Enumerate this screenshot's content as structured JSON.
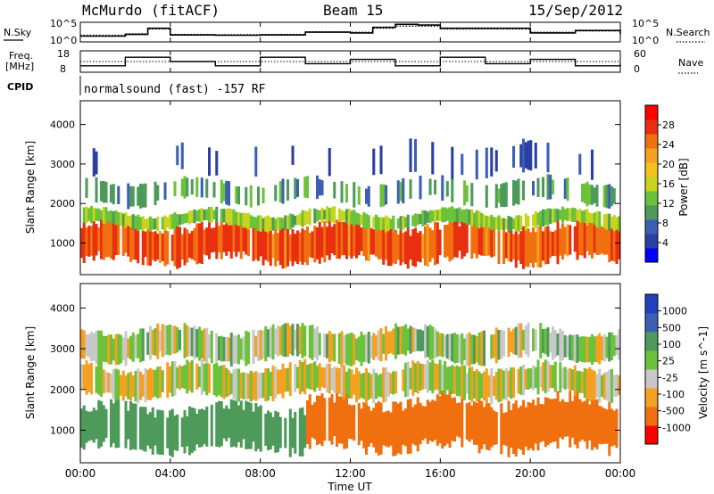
{
  "header": {
    "station": "McMurdo (fitACF)",
    "beam": "Beam 15",
    "date": "15/Sep/2012"
  },
  "noise_panel": {
    "left_label": "N.Sky",
    "right_label": "N.Search",
    "left_ticks": [
      "10^5",
      "10^0"
    ],
    "right_ticks": [
      "10^5",
      "10^0"
    ]
  },
  "freq_panel": {
    "left_label_1": "Freq.",
    "left_label_2": "[MHz]",
    "right_label": "Nave",
    "left_ticks": [
      "18",
      "8"
    ],
    "right_ticks": [
      "60",
      "0"
    ]
  },
  "cpid": {
    "label": "CPID",
    "text": "normalsound (fast) -157 RF"
  },
  "x_axis": {
    "label": "Time UT",
    "ticks": [
      "00:00",
      "04:00",
      "08:00",
      "12:00",
      "16:00",
      "20:00",
      "00:00"
    ]
  },
  "colors": {
    "power_scale": [
      "#0000ff",
      "#2a3fa0",
      "#3c5fb4",
      "#4d9a5a",
      "#6cc23a",
      "#c8d41e",
      "#f5c21c",
      "#f5a020",
      "#f07010",
      "#e83010",
      "#ff0000"
    ],
    "velocity_scale": [
      "#ff0000",
      "#f07010",
      "#f5a020",
      "#c8c8c8",
      "#6cc23a",
      "#4d9a5a",
      "#3c5fb4",
      "#2040c0"
    ]
  },
  "chart_data": [
    {
      "type": "line",
      "title": "",
      "xlabel": "",
      "ylabel": "N.Sky",
      "y_scale": "log",
      "ylim": [
        1,
        100000
      ],
      "legend": [
        "N.Sky",
        "N.Search"
      ],
      "x_hours": [
        0,
        2,
        3,
        4,
        6,
        8,
        10,
        12,
        13,
        14,
        15,
        16,
        18,
        20,
        22,
        24
      ],
      "series": [
        {
          "name": "N.Sky",
          "style": "solid",
          "values": [
            30,
            80,
            3000,
            60,
            50,
            60,
            300,
            200,
            5000,
            30000,
            20000,
            3000,
            3000,
            200,
            800,
            100
          ]
        },
        {
          "name": "N.Search",
          "style": "dotted",
          "values": [
            50,
            120,
            2000,
            80,
            70,
            80,
            400,
            300,
            3000,
            10000,
            10000,
            2000,
            2000,
            300,
            600,
            150
          ]
        }
      ]
    },
    {
      "type": "line",
      "title": "",
      "xlabel": "",
      "ylabel": "Freq. [MHz]",
      "ylim": [
        8,
        18
      ],
      "legend": [
        "Freq.",
        "Nave"
      ],
      "x_hours": [
        0,
        2,
        4,
        6,
        8,
        10,
        12,
        14,
        16,
        18,
        20,
        22,
        24
      ],
      "series": [
        {
          "name": "Freq.",
          "style": "solid",
          "values": [
            11,
            15,
            13,
            11,
            15,
            12,
            14,
            11,
            15,
            12,
            14,
            11,
            12
          ]
        },
        {
          "name": "Nave",
          "style": "dotted",
          "axis_range": [
            0,
            60
          ],
          "values": [
            30,
            30,
            30,
            30,
            30,
            30,
            30,
            30,
            30,
            30,
            30,
            30,
            30
          ]
        }
      ]
    },
    {
      "type": "heatmap",
      "title": "",
      "xlabel": "",
      "ylabel": "Slant Range [km]",
      "xlim": [
        "00:00",
        "24:00"
      ],
      "ylim": [
        200,
        4600
      ],
      "yticks": [
        1000,
        2000,
        3000,
        4000
      ],
      "colorbar_label": "Power [dB]",
      "colorbar_ticks": [
        28,
        24,
        20,
        16,
        12,
        8,
        4
      ],
      "colorbar_range": [
        0,
        32
      ],
      "bands": [
        {
          "range_km": [
            500,
            1500
          ],
          "power_dB": 26,
          "coverage": "continuous"
        },
        {
          "range_km": [
            1400,
            1800
          ],
          "power_dB": 14,
          "coverage": "continuous"
        },
        {
          "range_km": [
            2000,
            2600
          ],
          "power_dB": 10,
          "coverage": "patchy"
        },
        {
          "range_km": [
            2700,
            3500
          ],
          "power_dB": 6,
          "coverage": "sparse"
        }
      ]
    },
    {
      "type": "heatmap",
      "title": "",
      "xlabel": "Time UT",
      "ylabel": "Slant Range [km]",
      "xlim": [
        "00:00",
        "24:00"
      ],
      "ylim": [
        200,
        4600
      ],
      "yticks": [
        1000,
        2000,
        3000,
        4000
      ],
      "colorbar_label": "Velocity [m s^-1]",
      "colorbar_ticks": [
        1000,
        500,
        100,
        25,
        -25,
        -100,
        -500,
        -1000
      ],
      "bands": [
        {
          "range_km": [
            500,
            1600
          ],
          "time_hours": [
            0,
            10
          ],
          "velocity_ms": 300
        },
        {
          "range_km": [
            500,
            1800
          ],
          "time_hours": [
            10,
            24
          ],
          "velocity_ms": -200
        },
        {
          "range_km": [
            1800,
            2600
          ],
          "velocity_ms": 0
        },
        {
          "range_km": [
            2700,
            3500
          ],
          "velocity_ms": 25
        }
      ]
    }
  ]
}
